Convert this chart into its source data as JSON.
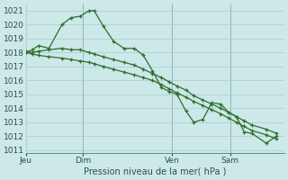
{
  "background_color": "#cce8e8",
  "grid_color": "#aacccc",
  "line_color": "#2d6e2d",
  "title": "Pression niveau de la mer( hPa )",
  "ylim": [
    1010.8,
    1021.5
  ],
  "yticks": [
    1011,
    1012,
    1013,
    1014,
    1015,
    1016,
    1017,
    1018,
    1019,
    1020,
    1021
  ],
  "xtick_labels": [
    "Jeu",
    "Dim",
    "Ven",
    "Sam"
  ],
  "vline_positions": [
    0.22,
    0.565,
    0.79
  ],
  "series": [
    {
      "x": [
        0.0,
        0.025,
        0.05,
        0.09,
        0.14,
        0.175,
        0.21,
        0.245,
        0.265,
        0.3,
        0.34,
        0.38,
        0.42,
        0.455,
        0.49,
        0.525,
        0.555,
        0.585,
        0.62,
        0.65,
        0.685,
        0.72,
        0.755,
        0.785,
        0.815,
        0.845,
        0.875,
        0.93,
        0.97
      ],
      "y": [
        1018.0,
        1018.2,
        1018.5,
        1018.3,
        1020.0,
        1020.5,
        1020.6,
        1021.0,
        1021.0,
        1019.9,
        1018.8,
        1018.3,
        1018.3,
        1017.8,
        1016.7,
        1015.5,
        1015.2,
        1015.0,
        1013.8,
        1013.0,
        1013.2,
        1014.4,
        1014.3,
        1013.7,
        1013.4,
        1012.3,
        1012.2,
        1011.5,
        1012.0
      ]
    },
    {
      "x": [
        0.0,
        0.97
      ],
      "y": [
        1018.1,
        1012.2
      ]
    },
    {
      "x": [
        0.0,
        0.97
      ],
      "y": [
        1018.0,
        1011.8
      ]
    }
  ],
  "series2_x": [
    0.0,
    0.025,
    0.05,
    0.09,
    0.14,
    0.175,
    0.21,
    0.245,
    0.265,
    0.3,
    0.34,
    0.38,
    0.42,
    0.455,
    0.49,
    0.525,
    0.555,
    0.585,
    0.62,
    0.65,
    0.685,
    0.72,
    0.755,
    0.785,
    0.815,
    0.845,
    0.875,
    0.93,
    0.97
  ],
  "series2_y": [
    1018.1,
    1018.0,
    1018.1,
    1018.2,
    1018.3,
    1018.2,
    1018.2,
    1018.0,
    1017.9,
    1017.7,
    1017.5,
    1017.3,
    1017.1,
    1016.8,
    1016.5,
    1016.2,
    1015.9,
    1015.6,
    1015.3,
    1014.9,
    1014.6,
    1014.3,
    1014.0,
    1013.7,
    1013.4,
    1013.1,
    1012.8,
    1012.5,
    1012.2
  ],
  "series3_y": [
    1018.0,
    1017.9,
    1017.8,
    1017.7,
    1017.6,
    1017.5,
    1017.4,
    1017.3,
    1017.2,
    1017.0,
    1016.8,
    1016.6,
    1016.4,
    1016.2,
    1016.0,
    1015.7,
    1015.4,
    1015.1,
    1014.8,
    1014.5,
    1014.2,
    1013.9,
    1013.6,
    1013.3,
    1013.0,
    1012.7,
    1012.4,
    1012.1,
    1011.8
  ],
  "xtick_xpos": [
    0.0,
    0.22,
    0.565,
    0.79
  ]
}
